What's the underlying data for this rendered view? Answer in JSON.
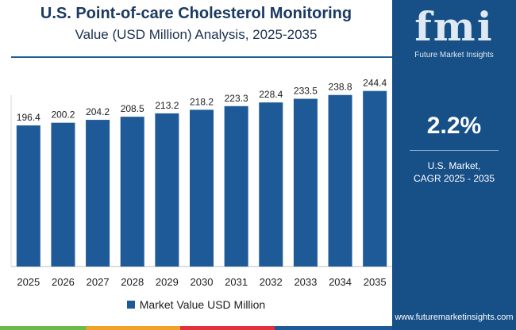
{
  "header": {
    "title_line1": "U.S. Point-of-care Cholesterol Monitoring",
    "title_line2": "Value (USD Million) Analysis, 2025-2035"
  },
  "chart_data": {
    "type": "bar",
    "title": "U.S. Point-of-care Cholesterol Monitoring Value (USD Million) Analysis, 2025-2035",
    "categories": [
      "2025",
      "2026",
      "2027",
      "2028",
      "2029",
      "2030",
      "2031",
      "2032",
      "2033",
      "2034",
      "2035"
    ],
    "series": [
      {
        "name": "Market Value USD Million",
        "values": [
          196.4,
          200.2,
          204.2,
          208.5,
          213.2,
          218.2,
          223.3,
          228.4,
          233.5,
          238.8,
          244.4
        ],
        "value_labels": [
          "196.4",
          "200.2",
          "204.2",
          "208.5",
          "213.2",
          "218.2",
          "223.3",
          "228.4",
          "233.5",
          "238.8",
          "244.4"
        ]
      }
    ],
    "xlabel": "",
    "ylabel": "",
    "ylim": [
      0,
      265
    ],
    "grid": false,
    "legend_position": "bottom-center",
    "bar_color": "#1e5a97"
  },
  "legend": {
    "label": "Market Value USD Million",
    "color": "#1e5a97"
  },
  "side_panel": {
    "logo_text": "fmi",
    "logo_subtitle": "Future Market Insights",
    "cagr_value": "2.2%",
    "cagr_label_line1": "U.S. Market,",
    "cagr_label_line2": "CAGR 2025 - 2035",
    "website": "www.futuremarketinsights.com",
    "background_color": "#174f87"
  }
}
